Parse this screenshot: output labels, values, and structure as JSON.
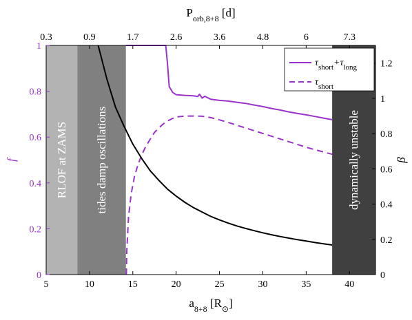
{
  "chart_data": {
    "type": "line",
    "x_bottom": {
      "ticks": [
        5,
        10,
        15,
        20,
        25,
        30,
        35,
        40
      ],
      "range": [
        5,
        43
      ],
      "label_main": "a",
      "label_sub": "8+8",
      "label_unit_open": " [R",
      "label_unit_sub": "⊙",
      "label_unit_close": "]"
    },
    "x_top": {
      "tick_labels": [
        "0.3",
        "0.9",
        "1.7",
        "2.6",
        "3.6",
        "4.8",
        "6",
        "7.3"
      ],
      "label_main": "P",
      "label_sub": "orb,8+8",
      "label_unit": " [d]"
    },
    "y_left": {
      "ticks": [
        0,
        0.2,
        0.4,
        0.6,
        0.8,
        1
      ],
      "range": [
        0,
        1
      ],
      "label": "f",
      "color": "#9933cc"
    },
    "y_right": {
      "ticks": [
        0,
        0.2,
        0.4,
        0.6,
        0.8,
        1,
        1.2
      ],
      "range": [
        0,
        1.3
      ],
      "label": "β"
    },
    "bands": [
      {
        "x0": 5,
        "x1": 8.6,
        "color": "#b3b3b3",
        "text": "RLOF at ZAMS"
      },
      {
        "x0": 8.6,
        "x1": 14.2,
        "color": "#808080",
        "text": "tides damp oscillations"
      },
      {
        "x0": 38,
        "x1": 43,
        "color": "#404040",
        "text": "dynamically unstable"
      }
    ],
    "series": [
      {
        "name_parts": [
          [
            "τ",
            "short"
          ],
          [
            "+τ",
            "long"
          ]
        ],
        "axis": "left",
        "color": "#9933cc",
        "dash": "solid",
        "points": [
          [
            14.2,
            1.0
          ],
          [
            15,
            1.0
          ],
          [
            16,
            1.0
          ],
          [
            17,
            1.0
          ],
          [
            18,
            1.0
          ],
          [
            18.8,
            1.0
          ],
          [
            19.0,
            0.92
          ],
          [
            19.2,
            0.82
          ],
          [
            19.6,
            0.795
          ],
          [
            20,
            0.785
          ],
          [
            21,
            0.782
          ],
          [
            22,
            0.78
          ],
          [
            22.5,
            0.777
          ],
          [
            22.7,
            0.787
          ],
          [
            23,
            0.77
          ],
          [
            23.3,
            0.778
          ],
          [
            24,
            0.765
          ],
          [
            25,
            0.76
          ],
          [
            26,
            0.757
          ],
          [
            27,
            0.752
          ],
          [
            28,
            0.747
          ],
          [
            29,
            0.74
          ],
          [
            30,
            0.733
          ],
          [
            31,
            0.725
          ],
          [
            32,
            0.718
          ],
          [
            33,
            0.71
          ],
          [
            34,
            0.703
          ],
          [
            35,
            0.697
          ],
          [
            36,
            0.69
          ],
          [
            37,
            0.683
          ],
          [
            38,
            0.676
          ]
        ]
      },
      {
        "name_parts": [
          [
            "τ",
            "short"
          ]
        ],
        "axis": "left",
        "color": "#9933cc",
        "dash": "dashed",
        "points": [
          [
            14.25,
            0.0
          ],
          [
            14.3,
            0.1
          ],
          [
            14.5,
            0.25
          ],
          [
            14.8,
            0.35
          ],
          [
            15.2,
            0.43
          ],
          [
            15.6,
            0.48
          ],
          [
            16,
            0.52
          ],
          [
            16.5,
            0.56
          ],
          [
            17,
            0.59
          ],
          [
            17.5,
            0.62
          ],
          [
            18,
            0.64
          ],
          [
            18.5,
            0.657
          ],
          [
            19,
            0.67
          ],
          [
            19.5,
            0.68
          ],
          [
            20,
            0.688
          ],
          [
            21,
            0.692
          ],
          [
            22,
            0.692
          ],
          [
            23,
            0.691
          ],
          [
            24,
            0.685
          ],
          [
            25,
            0.675
          ],
          [
            26,
            0.664
          ],
          [
            27,
            0.652
          ],
          [
            28,
            0.64
          ],
          [
            29,
            0.628
          ],
          [
            30,
            0.616
          ],
          [
            31,
            0.604
          ],
          [
            32,
            0.592
          ],
          [
            33,
            0.58
          ],
          [
            34,
            0.568
          ],
          [
            35,
            0.556
          ],
          [
            36,
            0.545
          ],
          [
            37,
            0.535
          ],
          [
            38,
            0.525
          ]
        ]
      },
      {
        "name": "",
        "axis": "right",
        "color": "#000000",
        "dash": "solid",
        "points": [
          [
            11.0,
            1.3
          ],
          [
            12,
            1.11
          ],
          [
            13,
            0.95
          ],
          [
            14,
            0.84
          ],
          [
            15,
            0.74
          ],
          [
            16,
            0.66
          ],
          [
            17,
            0.59
          ],
          [
            18,
            0.535
          ],
          [
            19,
            0.485
          ],
          [
            20,
            0.445
          ],
          [
            21,
            0.41
          ],
          [
            22,
            0.38
          ],
          [
            23,
            0.355
          ],
          [
            24,
            0.33
          ],
          [
            25,
            0.31
          ],
          [
            26,
            0.292
          ],
          [
            27,
            0.276
          ],
          [
            28,
            0.262
          ],
          [
            29,
            0.249
          ],
          [
            30,
            0.237
          ],
          [
            31,
            0.226
          ],
          [
            32,
            0.216
          ],
          [
            33,
            0.207
          ],
          [
            34,
            0.198
          ],
          [
            35,
            0.19
          ],
          [
            36,
            0.182
          ],
          [
            37,
            0.175
          ],
          [
            38,
            0.168
          ]
        ]
      }
    ],
    "legend_position": "top-right"
  }
}
